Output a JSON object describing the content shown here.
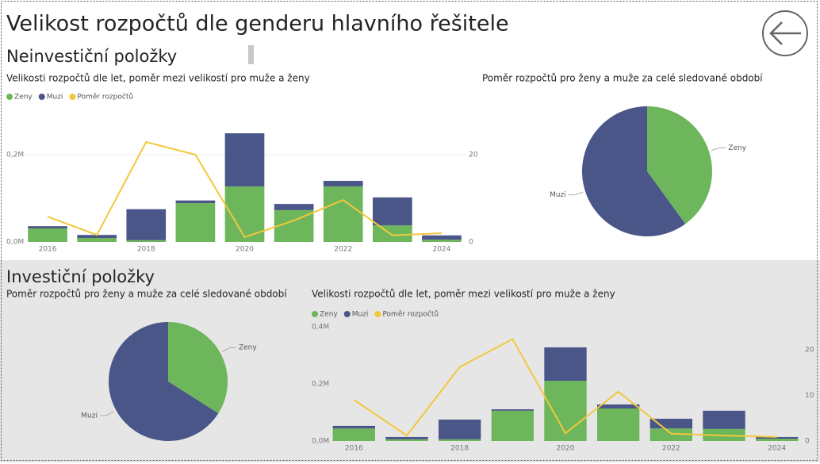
{
  "title": "Velikost rozpočtů dle genderu hlavního řešitele",
  "sections": [
    {
      "title": "Neinvestiční položky"
    },
    {
      "title": "Investiční položky"
    }
  ],
  "chart_data": [
    {
      "type": "bar",
      "title": "Velikosti rozpočtů dle let, poměr mezi velikostí pro muže a ženy",
      "stacked": true,
      "grid": true,
      "categories": [
        "2016",
        null,
        "2018",
        null,
        "2020",
        null,
        "2022",
        null,
        "2024"
      ],
      "series": [
        {
          "name": "Zeny",
          "color": "#6db65b",
          "values": [
            31000,
            9000,
            4000,
            89000,
            127000,
            73000,
            127000,
            38000,
            5000
          ]
        },
        {
          "name": "Muzi",
          "color": "#4a5588",
          "values": [
            5000,
            7000,
            71000,
            6000,
            122000,
            14000,
            13000,
            64000,
            10000
          ]
        },
        {
          "name": "Poměr rozpočtů",
          "type": "line",
          "axis": "y2",
          "color": "#f2c83b",
          "values": [
            5.8,
            1.6,
            22.9,
            20,
            1.1,
            4.9,
            9.6,
            1.5,
            2.0
          ]
        }
      ],
      "ylim": [
        0,
        300000
      ],
      "yticks": [
        {
          "value": 0,
          "label": "0,0M"
        },
        {
          "value": 200000,
          "label": "0,2M"
        }
      ],
      "y2lim": [
        0,
        30
      ],
      "y2ticks": [
        0,
        20
      ]
    },
    {
      "type": "pie",
      "title": "Poměr rozpočtů pro ženy a muže za celé sledované období",
      "categories": [
        "Zeny",
        "Muzi"
      ],
      "values": [
        40,
        60
      ],
      "colors": [
        "#6db65b",
        "#4a5588"
      ]
    },
    {
      "type": "pie",
      "title": "Poměr rozpočtů pro ženy a muže za celé sledované období",
      "categories": [
        "Zeny",
        "Muzi"
      ],
      "values": [
        34,
        66
      ],
      "colors": [
        "#6db65b",
        "#4a5588"
      ]
    },
    {
      "type": "bar",
      "title": "Velikosti rozpočtů dle let, poměr mezi velikostí pro muže a ženy",
      "stacked": true,
      "grid": false,
      "categories": [
        "2016",
        null,
        "2018",
        null,
        "2020",
        null,
        "2022",
        null,
        "2024"
      ],
      "series": [
        {
          "name": "Zeny",
          "color": "#6db65b",
          "values": [
            44000,
            6000,
            6000,
            106000,
            211000,
            114000,
            44000,
            42000,
            8000
          ]
        },
        {
          "name": "Muzi",
          "color": "#4a5588",
          "values": [
            9000,
            8000,
            69000,
            5000,
            117000,
            14000,
            34000,
            64000,
            6000
          ]
        },
        {
          "name": "Poměr rozpočtů",
          "type": "line",
          "axis": "y2",
          "color": "#f2c83b",
          "values": [
            9.0,
            1.2,
            16.2,
            22.3,
            1.7,
            10.8,
            1.6,
            1.2,
            0.9
          ]
        }
      ],
      "ylim": [
        0,
        400000
      ],
      "yticks": [
        {
          "value": 0,
          "label": "0,0M"
        },
        {
          "value": 200000,
          "label": "0,2M"
        },
        {
          "value": 400000,
          "label": "0,4M"
        }
      ],
      "y2lim": [
        0,
        25
      ],
      "y2ticks": [
        0,
        10,
        20
      ]
    }
  ]
}
